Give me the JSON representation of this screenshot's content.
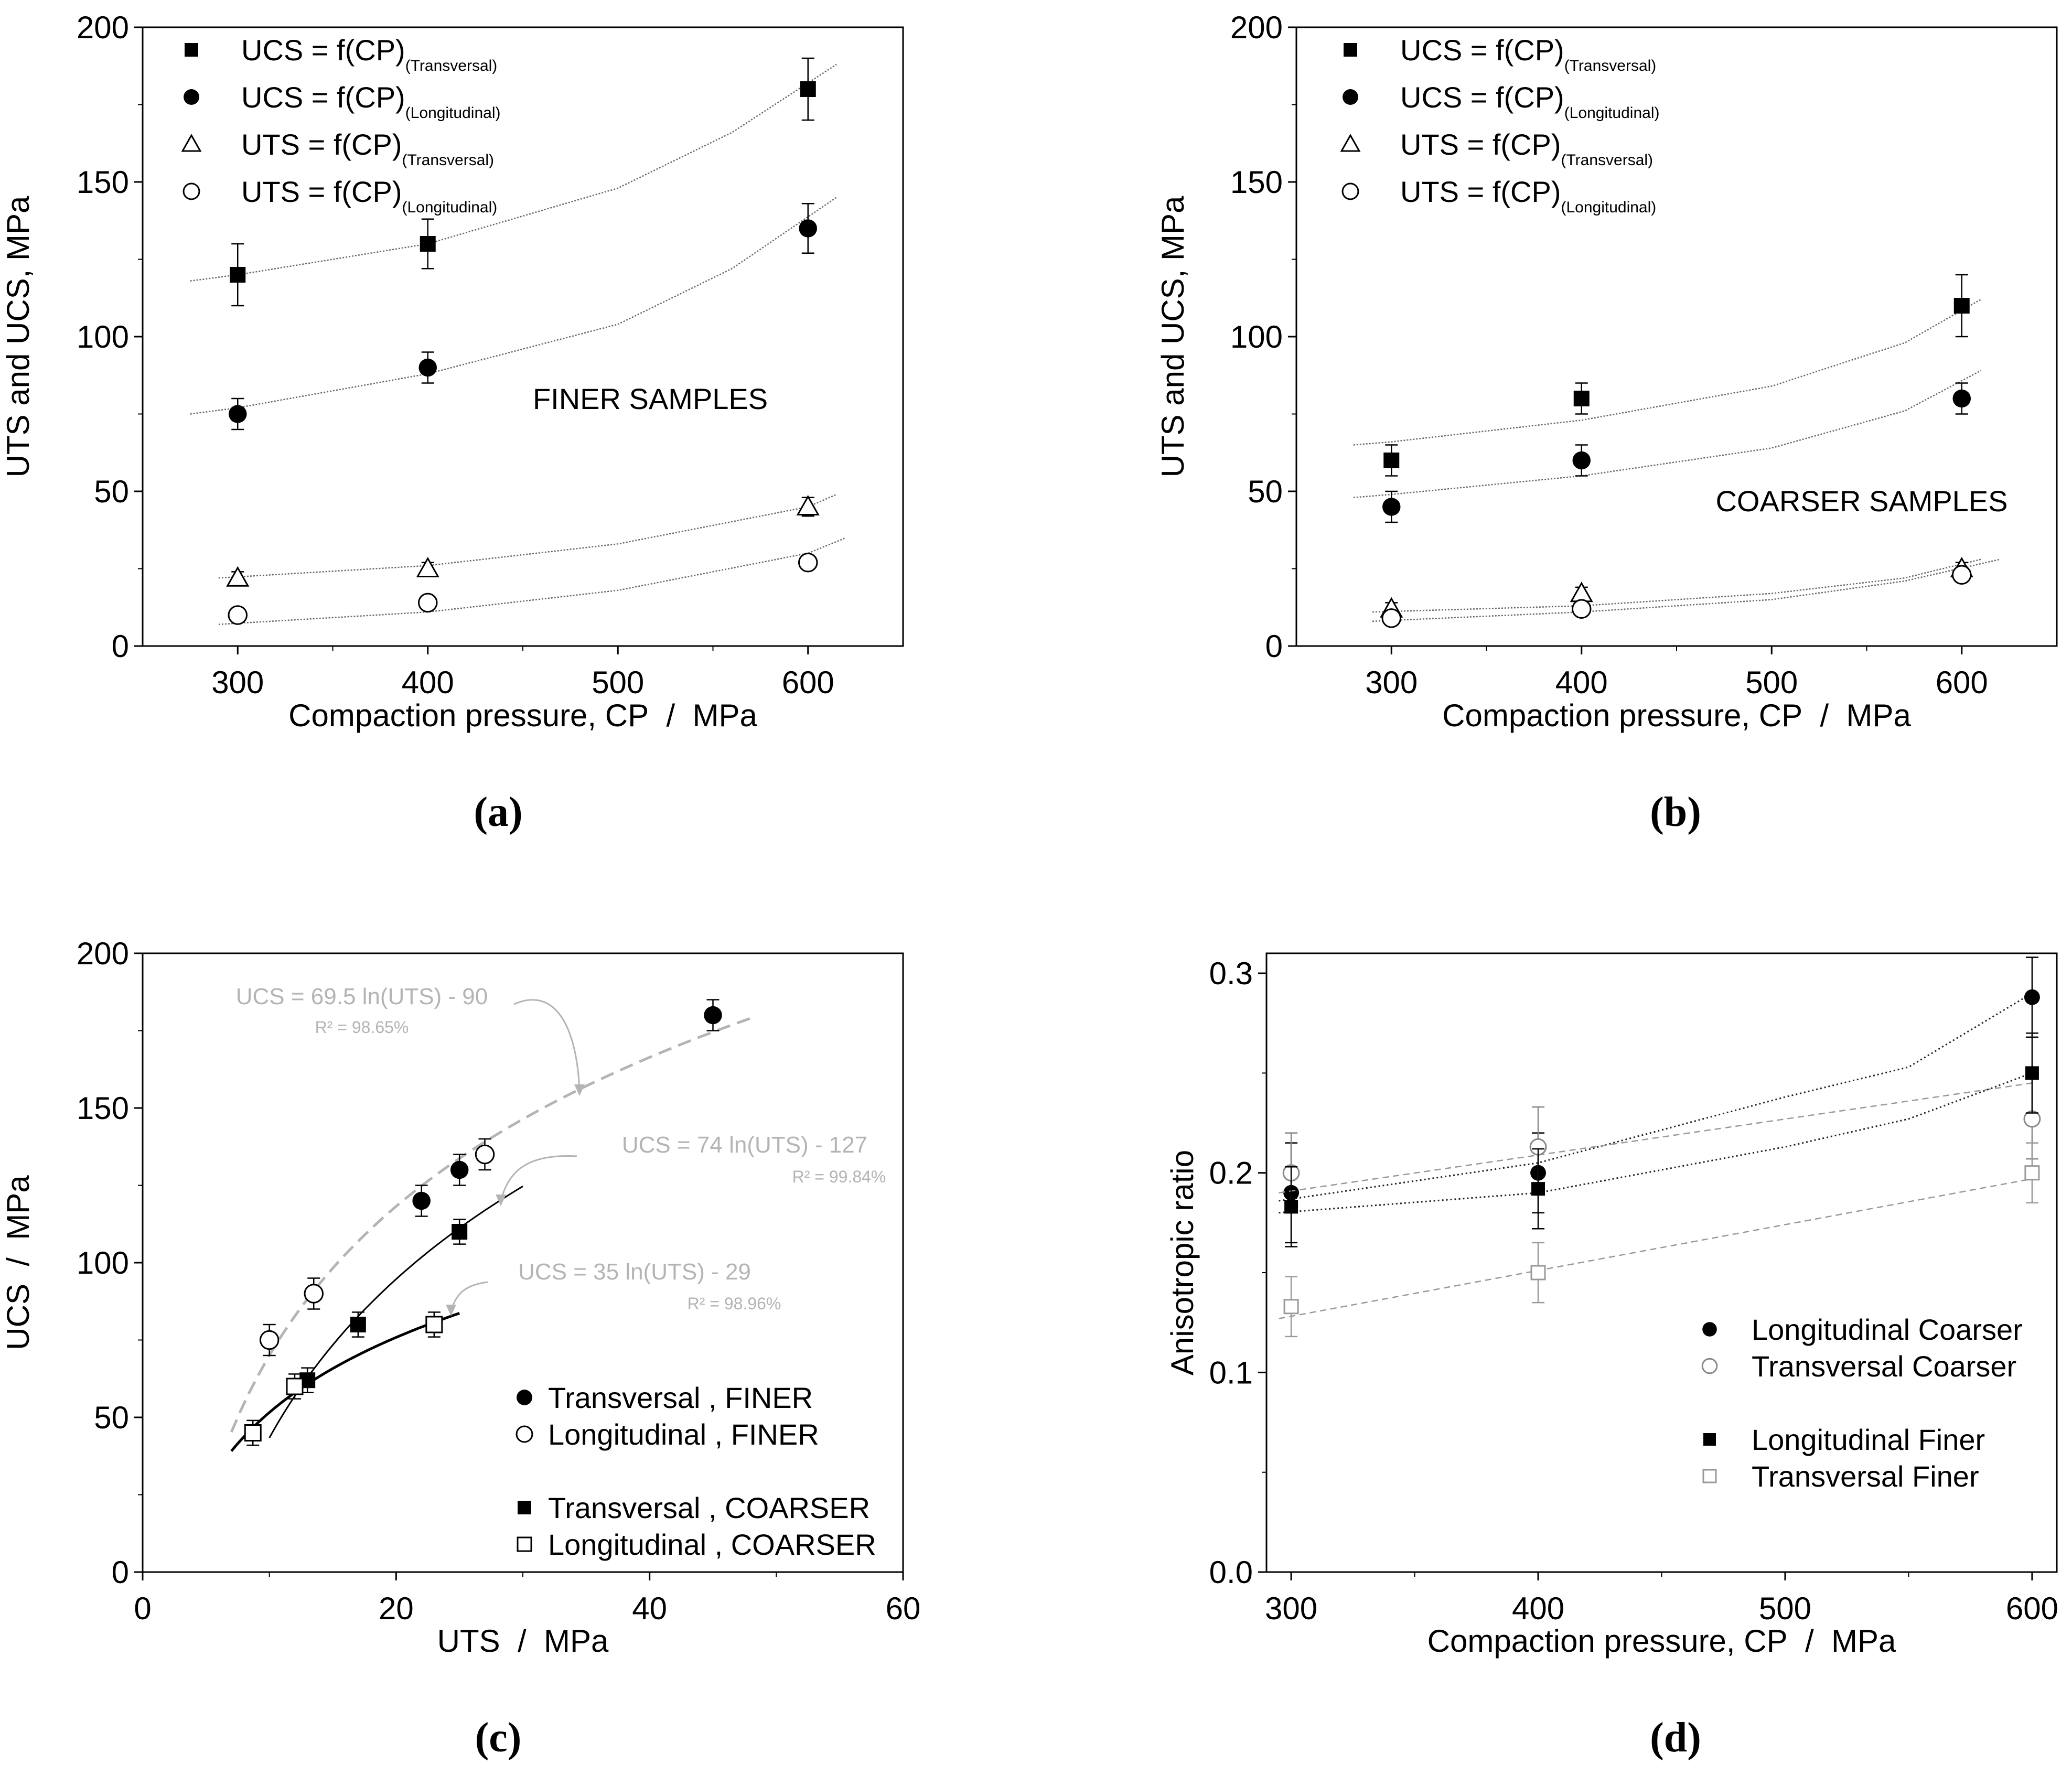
{
  "figure": {
    "captions": [
      "(a)",
      "(b)",
      "(c)",
      "(d)"
    ]
  },
  "chart_data": [
    {
      "id": "a",
      "type": "scatter",
      "caption": "(a)",
      "xlabel": "Compaction pressure, CP  /  MPa",
      "ylabel": "UTS and UCS, MPa",
      "xlim": [
        250,
        650
      ],
      "ylim": [
        0,
        200
      ],
      "xticks": [
        300,
        400,
        500,
        600
      ],
      "yticks": [
        0,
        50,
        100,
        150,
        200
      ],
      "annotation": "FINER SAMPLES",
      "legend_position": "top-left",
      "series": [
        {
          "name": "UCS = f(CP)",
          "sub": "(Transversal)",
          "marker": "filled-square",
          "x": [
            300,
            400,
            600
          ],
          "y": [
            120,
            130,
            180
          ],
          "err": [
            10,
            8,
            10
          ],
          "fit": {
            "x": [
              275,
              300,
              400,
              500,
              560,
              615
            ],
            "y": [
              118,
              120,
              130,
              148,
              166,
              188
            ]
          }
        },
        {
          "name": "UCS = f(CP)",
          "sub": "(Longitudinal)",
          "marker": "filled-circle",
          "x": [
            300,
            400,
            600
          ],
          "y": [
            75,
            90,
            135
          ],
          "err": [
            5,
            5,
            8
          ],
          "fit": {
            "x": [
              275,
              300,
              400,
              500,
              560,
              615
            ],
            "y": [
              75,
              77,
              88,
              104,
              122,
              145
            ]
          }
        },
        {
          "name": "UTS = f(CP)",
          "sub": "(Transversal)",
          "marker": "open-triangle",
          "x": [
            300,
            400,
            600
          ],
          "y": [
            22,
            25,
            45
          ],
          "err": [
            2,
            2,
            3
          ],
          "fit": {
            "x": [
              290,
              400,
              500,
              600,
              615
            ],
            "y": [
              22,
              26,
              33,
              45,
              49
            ]
          }
        },
        {
          "name": "UTS = f(CP)",
          "sub": "(Longitudinal)",
          "marker": "open-circle",
          "x": [
            300,
            400,
            600
          ],
          "y": [
            10,
            14,
            27
          ],
          "err": [
            1,
            1.5,
            2
          ],
          "fit": {
            "x": [
              290,
              400,
              500,
              600,
              620
            ],
            "y": [
              7,
              11,
              18,
              30,
              35
            ]
          }
        }
      ]
    },
    {
      "id": "b",
      "type": "scatter",
      "caption": "(b)",
      "xlabel": "Compaction pressure, CP  /  MPa",
      "ylabel": "UTS and UCS, MPa",
      "xlim": [
        250,
        650
      ],
      "ylim": [
        0,
        200
      ],
      "xticks": [
        300,
        400,
        500,
        600
      ],
      "yticks": [
        0,
        50,
        100,
        150,
        200
      ],
      "annotation": "COARSER SAMPLES",
      "legend_position": "top-left",
      "series": [
        {
          "name": "UCS = f(CP)",
          "sub": "(Transversal)",
          "marker": "filled-square",
          "x": [
            300,
            400,
            600
          ],
          "y": [
            60,
            80,
            110
          ],
          "err": [
            5,
            5,
            10
          ],
          "fit": {
            "x": [
              280,
              300,
              400,
              500,
              570,
              610
            ],
            "y": [
              65,
              66,
              73,
              84,
              98,
              112
            ]
          }
        },
        {
          "name": "UCS = f(CP)",
          "sub": "(Longitudinal)",
          "marker": "filled-circle",
          "x": [
            300,
            400,
            600
          ],
          "y": [
            45,
            60,
            80
          ],
          "err": [
            5,
            5,
            5
          ],
          "fit": {
            "x": [
              280,
              300,
              400,
              500,
              570,
              610
            ],
            "y": [
              48,
              49,
              55,
              64,
              76,
              89
            ]
          }
        },
        {
          "name": "UTS = f(CP)",
          "sub": "(Transversal)",
          "marker": "open-triangle",
          "x": [
            300,
            400,
            600
          ],
          "y": [
            12,
            17,
            25
          ],
          "err": [
            2,
            2,
            2
          ],
          "fit": {
            "x": [
              290,
              400,
              500,
              570,
              610
            ],
            "y": [
              11,
              13,
              17,
              22,
              28
            ]
          }
        },
        {
          "name": "UTS = f(CP)",
          "sub": "(Longitudinal)",
          "marker": "open-circle",
          "x": [
            300,
            400,
            600
          ],
          "y": [
            9,
            12,
            23
          ],
          "err": [
            1,
            1.5,
            2
          ],
          "fit": {
            "x": [
              290,
              400,
              500,
              570,
              620
            ],
            "y": [
              8,
              11,
              15,
              21,
              28
            ]
          }
        }
      ]
    },
    {
      "id": "c",
      "type": "scatter",
      "caption": "(c)",
      "xlabel": "UTS  /  MPa",
      "ylabel": "UCS  /  MPa",
      "xlim": [
        0,
        60
      ],
      "ylim": [
        0,
        200
      ],
      "xticks": [
        0,
        20,
        40,
        60
      ],
      "yticks": [
        0,
        50,
        100,
        150,
        200
      ],
      "legend_position": "bottom-right",
      "equations": [
        {
          "text": "UCS =  69.5 ln(UTS) - 90",
          "r2": "R² = 98.65%"
        },
        {
          "text": "UCS =  74 ln(UTS) - 127",
          "r2": "R² = 99.84%"
        },
        {
          "text": "UCS =  35 ln(UTS) - 29",
          "r2": "R² = 98.96%"
        }
      ],
      "series": [
        {
          "name": "Transversal , FINER",
          "marker": "filled-circle",
          "x": [
            22,
            25,
            45
          ],
          "y": [
            120,
            130,
            180
          ],
          "err": [
            5,
            5,
            5
          ]
        },
        {
          "name": "Longitudinal , FINER",
          "marker": "open-circle",
          "x": [
            10,
            13.5,
            27
          ],
          "y": [
            75,
            90,
            135
          ],
          "err": [
            5,
            5,
            5
          ]
        },
        {
          "name": "Transversal , COARSER",
          "marker": "filled-square",
          "x": [
            13,
            17,
            25
          ],
          "y": [
            62,
            80,
            110
          ],
          "err": [
            4,
            4,
            4
          ]
        },
        {
          "name": "Longitudinal , COARSER",
          "marker": "open-square",
          "x": [
            8.7,
            12,
            23
          ],
          "y": [
            45,
            60,
            80
          ],
          "err": [
            4,
            4,
            4
          ]
        }
      ],
      "fits": [
        {
          "equation": "69.5 ln(UTS) - 90",
          "a": 69.5,
          "b": -90,
          "x_range": [
            7,
            48
          ],
          "style": "gray-dashed"
        },
        {
          "equation": "74 ln(UTS) - 127",
          "a": 74,
          "b": -127,
          "x_range": [
            10,
            30
          ],
          "style": "black-solid"
        },
        {
          "equation": "35 ln(UTS) - 29",
          "a": 35,
          "b": -29,
          "x_range": [
            7,
            25
          ],
          "style": "black-thick"
        }
      ]
    },
    {
      "id": "d",
      "type": "scatter",
      "caption": "(d)",
      "xlabel": "Compaction pressure, CP  /  MPa",
      "ylabel": "Anisotropic ratio",
      "xlim": [
        290,
        610
      ],
      "ylim": [
        0,
        0.31
      ],
      "xticks": [
        300,
        400,
        500,
        600
      ],
      "yticks": [
        0.0,
        0.1,
        0.2,
        0.3
      ],
      "ytick_labels": [
        "0.0",
        "0.1",
        "0.2",
        "0.3"
      ],
      "legend_position": "bottom-right",
      "series": [
        {
          "name": "Longitudinal Coarser",
          "marker": "filled-circle",
          "x": [
            300,
            400,
            600
          ],
          "y": [
            0.19,
            0.2,
            0.288
          ],
          "err": [
            0.025,
            0.02,
            0.02
          ],
          "fit": {
            "x": [
              295,
              400,
              500,
              550,
              600
            ],
            "y": [
              0.186,
              0.205,
              0.238,
              0.253,
              0.29
            ]
          }
        },
        {
          "name": "Transversal Coarser",
          "marker": "open-circle",
          "x": [
            300,
            400,
            600
          ],
          "y": [
            0.2,
            0.213,
            0.227
          ],
          "err": [
            0.02,
            0.02,
            0.02
          ],
          "fit": {
            "x": [
              295,
              600
            ],
            "y": [
              0.19,
              0.245
            ]
          }
        },
        {
          "name": "Longitudinal Finer",
          "marker": "filled-square",
          "x": [
            300,
            400,
            600
          ],
          "y": [
            0.183,
            0.192,
            0.25
          ],
          "err": [
            0.02,
            0.02,
            0.02
          ],
          "fit": {
            "x": [
              295,
              400,
              500,
              550,
              600
            ],
            "y": [
              0.18,
              0.19,
              0.213,
              0.227,
              0.25
            ]
          }
        },
        {
          "name": "Transversal Finer",
          "marker": "open-square",
          "x": [
            300,
            400,
            600
          ],
          "y": [
            0.133,
            0.15,
            0.2
          ],
          "err": [
            0.015,
            0.015,
            0.015
          ],
          "fit": {
            "x": [
              295,
              600
            ],
            "y": [
              0.127,
              0.197
            ]
          }
        }
      ]
    }
  ]
}
